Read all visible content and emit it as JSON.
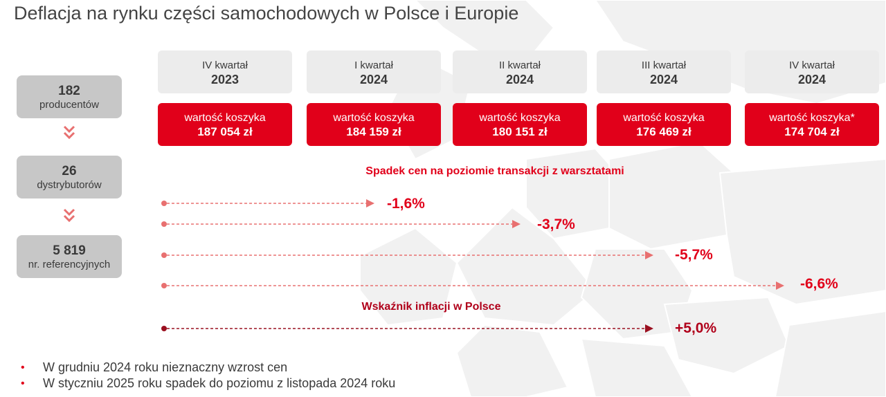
{
  "title": "Deflacja na rynku części samochodowych w Polsce i Europie",
  "stats": [
    {
      "value": "182",
      "label": "producentów"
    },
    {
      "value": "26",
      "label": "dystrybutorów"
    },
    {
      "value": "5 819",
      "label": "nr. referencyjnych"
    }
  ],
  "quarters": [
    {
      "label": "IV kwartał",
      "year": "2023",
      "basket_label": "wartość koszyka",
      "basket_value": "187 054 zł"
    },
    {
      "label": "I kwartał",
      "year": "2024",
      "basket_label": "wartość koszyka",
      "basket_value": "184 159 zł"
    },
    {
      "label": "II kwartał",
      "year": "2024",
      "basket_label": "wartość koszyka",
      "basket_value": "180 151 zł"
    },
    {
      "label": "III kwartał",
      "year": "2024",
      "basket_label": "wartość koszyka",
      "basket_value": "176 469 zł"
    },
    {
      "label": "IV kwartał",
      "year": "2024",
      "basket_label": "wartość koszyka*",
      "basket_value": "174 704 zł"
    }
  ],
  "price_drop_heading": "Spadek cen na poziomie transakcji z warsztatami",
  "price_drops": [
    "-1,6%",
    "-3,7%",
    "-5,7%",
    "-6,6%"
  ],
  "inflation_heading": "Wskaźnik inflacji w Polsce",
  "inflation_value": "+5,0%",
  "notes": [
    "W grudniu 2024 roku nieznaczny wzrost cen",
    "W styczniu 2025 roku spadek do poziomu z listopada 2024 roku"
  ],
  "colors": {
    "accent_red": "#e1001a",
    "dark_red": "#b0001a",
    "arrow_light": "#e87070",
    "arrow_dark": "#9a1020",
    "box_gray": "#c7c7c7",
    "quarter_bg": "#ececec"
  }
}
